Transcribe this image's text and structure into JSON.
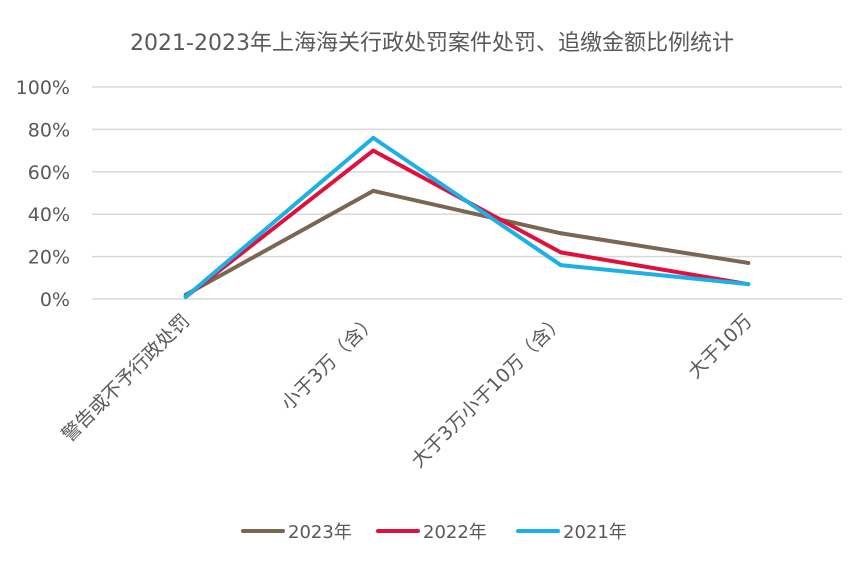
{
  "chart_data": {
    "type": "line",
    "title": "2021-2023年上海海关行政处罚案件处罚、追缴金额比例统计",
    "xlabel": "",
    "ylabel": "",
    "categories": [
      "警告或不予行政处罚",
      "小于3万（含）",
      "大于3万小于10万（含）",
      "大于10万"
    ],
    "series": [
      {
        "name": "2023年",
        "color": "#7b6652",
        "values": [
          2,
          51,
          31,
          17
        ]
      },
      {
        "name": "2022年",
        "color": "#e0103e",
        "values": [
          1,
          70,
          22,
          7
        ]
      },
      {
        "name": "2021年",
        "color": "#1bb0e6",
        "values": [
          1,
          76,
          16,
          7
        ]
      }
    ],
    "ylim": [
      0,
      100
    ],
    "yticks": [
      0,
      20,
      40,
      60,
      80,
      100
    ],
    "ytick_labels": [
      "0%",
      "20%",
      "40%",
      "60%",
      "80%",
      "100%"
    ],
    "grid": true,
    "legend_position": "bottom"
  }
}
